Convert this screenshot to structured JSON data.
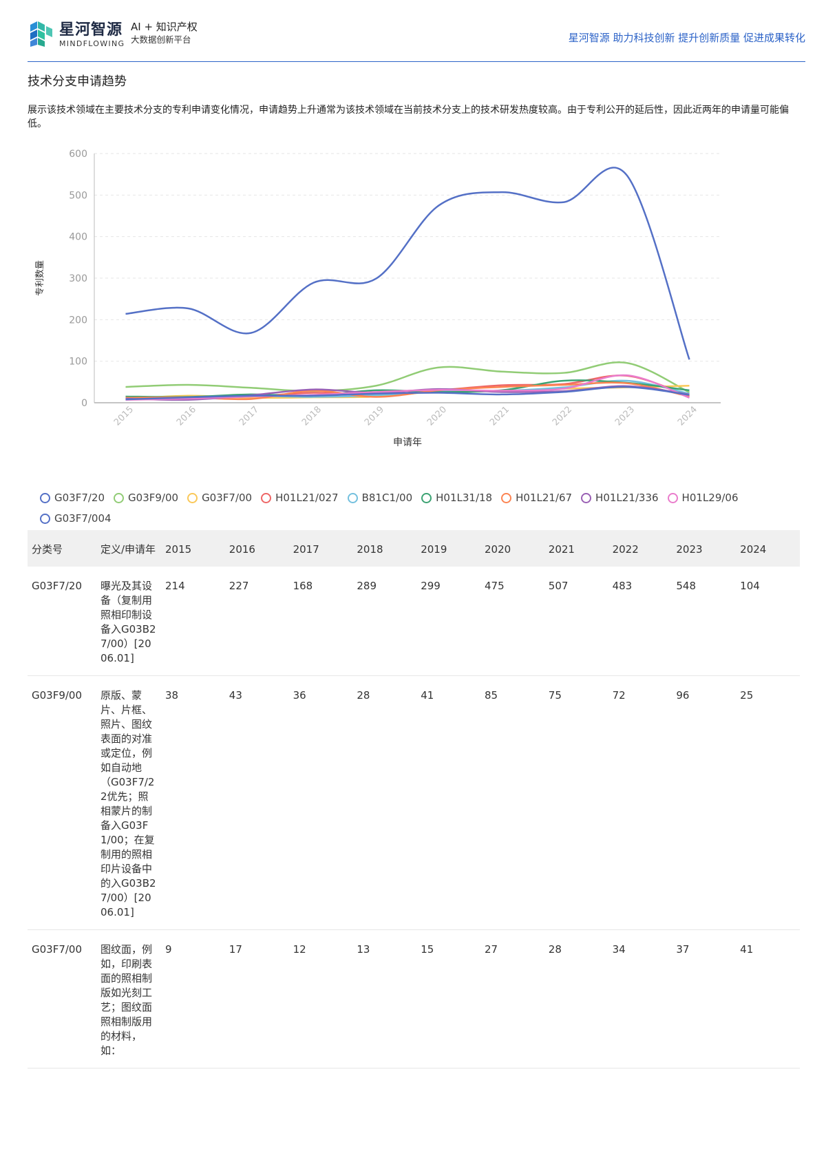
{
  "header": {
    "brand_cn": "星河智源",
    "brand_en": "MINDFLOWING",
    "brand_tag": "AI + 知识产权",
    "brand_tag2": "大数据创新平台",
    "slogan": "星河智源 助力科技创新 提升创新质量 促进成果转化"
  },
  "section": {
    "title": "技术分支申请趋势",
    "description": "展示该技术领域在主要技术分支的专利申请变化情况，申请趋势上升通常为该技术领域在当前技术分支上的技术研发热度较高。由于专利公开的延后性，因此近两年的申请量可能偏低。"
  },
  "chart_data": {
    "type": "line",
    "x": [
      "2015",
      "2016",
      "2017",
      "2018",
      "2019",
      "2020",
      "2021",
      "2022",
      "2023",
      "2024"
    ],
    "xlabel": "申请年",
    "ylabel": "专利数量",
    "ylim": [
      0,
      600
    ],
    "yticks": [
      "0",
      "100",
      "200",
      "300",
      "400",
      "500",
      "600"
    ],
    "grid": true,
    "legend": "bottom",
    "series": [
      {
        "name": "G03F7/20",
        "color": "#5470c6",
        "values": [
          214,
          227,
          168,
          289,
          299,
          475,
          507,
          483,
          548,
          104
        ]
      },
      {
        "name": "G03F9/00",
        "color": "#91cc75",
        "values": [
          38,
          43,
          36,
          28,
          41,
          85,
          75,
          72,
          96,
          25
        ]
      },
      {
        "name": "G03F7/00",
        "color": "#fac858",
        "values": [
          9,
          17,
          12,
          13,
          15,
          27,
          28,
          34,
          37,
          41
        ]
      },
      {
        "name": "H01L21/027",
        "color": "#ee6666",
        "values": [
          12,
          12,
          15,
          24,
          20,
          30,
          42,
          45,
          65,
          16
        ]
      },
      {
        "name": "B81C1/00",
        "color": "#73c0de",
        "values": [
          10,
          8,
          16,
          14,
          18,
          28,
          29,
          37,
          53,
          22
        ]
      },
      {
        "name": "H01L31/18",
        "color": "#3ba272",
        "values": [
          15,
          14,
          20,
          17,
          30,
          26,
          30,
          53,
          48,
          30
        ]
      },
      {
        "name": "H01L21/67",
        "color": "#fc8452",
        "values": [
          12,
          13,
          9,
          29,
          14,
          30,
          38,
          43,
          47,
          15
        ]
      },
      {
        "name": "H01L21/336",
        "color": "#9a60b4",
        "values": [
          10,
          7,
          18,
          32,
          24,
          33,
          26,
          28,
          40,
          20
        ]
      },
      {
        "name": "H01L29/06",
        "color": "#ea7ccc",
        "values": [
          7,
          10,
          15,
          19,
          26,
          31,
          29,
          34,
          66,
          12
        ]
      },
      {
        "name": "G03F7/004",
        "color": "#5470c6",
        "values": [
          8,
          13,
          17,
          17,
          22,
          24,
          20,
          26,
          38,
          19
        ]
      }
    ]
  },
  "table": {
    "headers": [
      "分类号",
      "定义/申请年",
      "2015",
      "2016",
      "2017",
      "2018",
      "2019",
      "2020",
      "2021",
      "2022",
      "2023",
      "2024"
    ],
    "rows": [
      {
        "code": "G03F7/20",
        "def": "曝光及其设备（复制用照相印制设备入G03B27/00）[2006.01]",
        "values": [
          "214",
          "227",
          "168",
          "289",
          "299",
          "475",
          "507",
          "483",
          "548",
          "104"
        ]
      },
      {
        "code": "G03F9/00",
        "def": "原版、蒙片、片框、照片、图纹表面的对准或定位，例如自动地（G03F7/22优先；照相蒙片的制备入G03F1/00；在复制用的照相印片设备中的入G03B27/00）[2006.01]",
        "values": [
          "38",
          "43",
          "36",
          "28",
          "41",
          "85",
          "75",
          "72",
          "96",
          "25"
        ]
      },
      {
        "code": "G03F7/00",
        "def": "图纹面，例如，印刷表面的照相制版如光刻工艺；图纹面照相制版用的材料，如：",
        "values": [
          "9",
          "17",
          "12",
          "13",
          "15",
          "27",
          "28",
          "34",
          "37",
          "41"
        ]
      }
    ]
  }
}
